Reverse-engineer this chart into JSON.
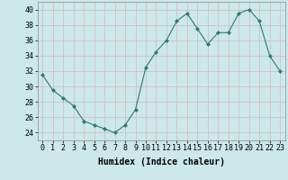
{
  "x": [
    0,
    1,
    2,
    3,
    4,
    5,
    6,
    7,
    8,
    9,
    10,
    11,
    12,
    13,
    14,
    15,
    16,
    17,
    18,
    19,
    20,
    21,
    22,
    23
  ],
  "y": [
    31.5,
    29.5,
    28.5,
    27.5,
    25.5,
    25.0,
    24.5,
    24.0,
    25.0,
    27.0,
    32.5,
    34.5,
    36.0,
    38.5,
    39.5,
    37.5,
    35.5,
    37.0,
    37.0,
    39.5,
    40.0,
    38.5,
    34.0,
    32.0
  ],
  "xlabel": "Humidex (Indice chaleur)",
  "ylim": [
    23,
    41
  ],
  "xlim": [
    -0.5,
    23.5
  ],
  "yticks": [
    24,
    26,
    28,
    30,
    32,
    34,
    36,
    38,
    40
  ],
  "xticks": [
    0,
    1,
    2,
    3,
    4,
    5,
    6,
    7,
    8,
    9,
    10,
    11,
    12,
    13,
    14,
    15,
    16,
    17,
    18,
    19,
    20,
    21,
    22,
    23
  ],
  "line_color": "#2a7d6e",
  "marker_color": "#2a7d6e",
  "bg_color": "#cce8e8",
  "grid_color": "#b8d8d8",
  "label_fontsize": 7,
  "tick_fontsize": 6
}
